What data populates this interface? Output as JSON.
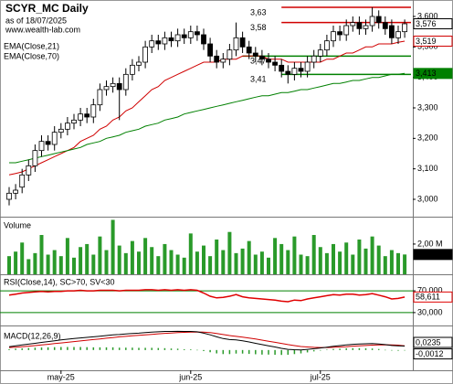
{
  "chart_data": [
    {
      "type": "candlestick",
      "title": "SCYR_MC Daily",
      "subtitle": "as of 18/07/2025",
      "source": "www.wealth-lab.com",
      "categories": [
        null,
        null,
        null,
        null,
        null,
        null,
        null,
        null,
        "may-25",
        null,
        null,
        null,
        null,
        null,
        null,
        null,
        null,
        null,
        null,
        null,
        null,
        null,
        null,
        null,
        null,
        null,
        null,
        null,
        "jun-25",
        null,
        null,
        null,
        null,
        null,
        null,
        null,
        null,
        null,
        null,
        null,
        null,
        null,
        null,
        null,
        null,
        null,
        null,
        null,
        "jul-25",
        null,
        null,
        null,
        null,
        null,
        null,
        null,
        null,
        null,
        null,
        null,
        null,
        null
      ],
      "open": [
        3.0,
        3.02,
        3.04,
        3.08,
        3.11,
        3.16,
        3.19,
        3.18,
        3.22,
        3.23,
        3.25,
        3.26,
        3.28,
        3.27,
        3.31,
        3.36,
        3.37,
        3.38,
        3.36,
        3.41,
        3.44,
        3.45,
        3.5,
        3.52,
        3.51,
        3.53,
        3.52,
        3.54,
        3.53,
        3.55,
        3.54,
        3.51,
        3.47,
        3.45,
        3.46,
        3.49,
        3.53,
        3.5,
        3.48,
        3.47,
        3.46,
        3.45,
        3.44,
        3.42,
        3.41,
        3.43,
        3.42,
        3.45,
        3.47,
        3.49,
        3.52,
        3.55,
        3.54,
        3.57,
        3.58,
        3.56,
        3.57,
        3.6,
        3.58,
        3.57,
        3.53,
        3.55
      ],
      "high": [
        3.04,
        3.05,
        3.1,
        3.13,
        3.18,
        3.21,
        3.21,
        3.24,
        3.25,
        3.27,
        3.28,
        3.3,
        3.3,
        3.33,
        3.38,
        3.39,
        3.4,
        3.4,
        3.43,
        3.46,
        3.47,
        3.52,
        3.54,
        3.54,
        3.55,
        3.55,
        3.56,
        3.56,
        3.57,
        3.57,
        3.56,
        3.53,
        3.49,
        3.48,
        3.51,
        3.58,
        3.55,
        3.52,
        3.5,
        3.49,
        3.48,
        3.47,
        3.46,
        3.44,
        3.45,
        3.45,
        3.47,
        3.49,
        3.51,
        3.54,
        3.57,
        3.57,
        3.59,
        3.6,
        3.6,
        3.59,
        3.63,
        3.62,
        3.6,
        3.59,
        3.57,
        3.59
      ],
      "low": [
        2.98,
        3.0,
        3.02,
        3.06,
        3.09,
        3.14,
        3.16,
        3.16,
        3.2,
        3.21,
        3.23,
        3.24,
        3.25,
        3.25,
        3.29,
        3.34,
        3.35,
        3.26,
        3.34,
        3.39,
        3.42,
        3.43,
        3.48,
        3.49,
        3.49,
        3.5,
        3.5,
        3.51,
        3.51,
        3.52,
        3.49,
        3.45,
        3.43,
        3.43,
        3.44,
        3.47,
        3.48,
        3.46,
        3.45,
        3.44,
        3.43,
        3.42,
        3.4,
        3.38,
        3.39,
        3.4,
        3.4,
        3.43,
        3.45,
        3.47,
        3.5,
        3.52,
        3.52,
        3.55,
        3.54,
        3.54,
        3.55,
        3.56,
        3.54,
        3.51,
        3.51,
        3.53
      ],
      "close": [
        3.02,
        3.03,
        3.08,
        3.11,
        3.16,
        3.19,
        3.18,
        3.22,
        3.23,
        3.25,
        3.26,
        3.28,
        3.27,
        3.31,
        3.36,
        3.37,
        3.38,
        3.36,
        3.41,
        3.44,
        3.45,
        3.5,
        3.52,
        3.51,
        3.53,
        3.52,
        3.54,
        3.53,
        3.55,
        3.54,
        3.51,
        3.47,
        3.45,
        3.46,
        3.49,
        3.53,
        3.5,
        3.48,
        3.47,
        3.46,
        3.45,
        3.44,
        3.42,
        3.41,
        3.43,
        3.42,
        3.45,
        3.47,
        3.49,
        3.52,
        3.55,
        3.54,
        3.57,
        3.58,
        3.56,
        3.57,
        3.6,
        3.58,
        3.56,
        3.53,
        3.55,
        3.576
      ],
      "last_label": "3,576",
      "series": [
        {
          "name": "EMA(Close,21)",
          "color": "#d00000",
          "last_label": "3,519",
          "values": [
            3.08,
            3.085,
            3.09,
            3.1,
            3.11,
            3.12,
            3.13,
            3.14,
            3.15,
            3.16,
            3.17,
            3.19,
            3.2,
            3.21,
            3.23,
            3.24,
            3.26,
            3.27,
            3.29,
            3.3,
            3.32,
            3.34,
            3.36,
            3.37,
            3.39,
            3.4,
            3.41,
            3.42,
            3.43,
            3.44,
            3.45,
            3.45,
            3.45,
            3.46,
            3.46,
            3.46,
            3.47,
            3.47,
            3.47,
            3.47,
            3.46,
            3.46,
            3.46,
            3.45,
            3.45,
            3.45,
            3.45,
            3.45,
            3.45,
            3.46,
            3.46,
            3.47,
            3.48,
            3.48,
            3.49,
            3.5,
            3.5,
            3.51,
            3.51,
            3.51,
            3.515,
            3.519
          ]
        },
        {
          "name": "EMA(Close,70)",
          "color": "#008000",
          "last_label": "3,413",
          "values": [
            3.12,
            3.12,
            3.125,
            3.13,
            3.135,
            3.14,
            3.145,
            3.15,
            3.155,
            3.16,
            3.165,
            3.17,
            3.18,
            3.185,
            3.19,
            3.2,
            3.205,
            3.21,
            3.22,
            3.225,
            3.23,
            3.24,
            3.245,
            3.25,
            3.26,
            3.265,
            3.27,
            3.28,
            3.285,
            3.29,
            3.295,
            3.3,
            3.305,
            3.31,
            3.315,
            3.32,
            3.325,
            3.33,
            3.335,
            3.34,
            3.34,
            3.345,
            3.35,
            3.35,
            3.355,
            3.36,
            3.36,
            3.365,
            3.37,
            3.375,
            3.38,
            3.38,
            3.385,
            3.39,
            3.39,
            3.395,
            3.4,
            3.4,
            3.405,
            3.41,
            3.41,
            3.413
          ]
        }
      ],
      "levels": [
        {
          "value": 3.63,
          "label": "3,63",
          "color": "#d00000"
        },
        {
          "value": 3.58,
          "label": "3,58",
          "color": "#d00000"
        },
        {
          "value": 3.47,
          "label": "3,47",
          "color": "#008000"
        },
        {
          "value": 3.41,
          "label": "3,41",
          "color": "#008000"
        }
      ],
      "ylim": [
        2.946,
        3.648
      ],
      "yticks": [
        {
          "value": 3.6,
          "label": "3,600"
        },
        {
          "value": 3.5,
          "label": "3,500"
        },
        {
          "value": 3.4,
          "label": "3,400"
        },
        {
          "value": 3.3,
          "label": "3,300"
        },
        {
          "value": 3.2,
          "label": "3,200"
        },
        {
          "value": 3.1,
          "label": "3,100"
        },
        {
          "value": 3.0,
          "label": "3,000"
        }
      ]
    },
    {
      "type": "bar",
      "title": "Volume",
      "color": "#2a9a2a",
      "last_label": "1,31M",
      "values": [
        1.2,
        1.5,
        2.1,
        1.0,
        1.4,
        2.6,
        1.3,
        1.6,
        1.2,
        2.4,
        1.1,
        1.8,
        2.0,
        1.3,
        2.5,
        1.6,
        3.6,
        1.9,
        1.4,
        2.2,
        1.5,
        2.4,
        1.8,
        1.2,
        2.0,
        1.6,
        1.3,
        1.1,
        2.7,
        1.5,
        1.9,
        1.2,
        2.3,
        1.6,
        2.8,
        1.4,
        1.7,
        2.2,
        1.3,
        1.5,
        1.1,
        2.4,
        2.0,
        1.6,
        2.5,
        1.3,
        1.2,
        2.6,
        1.8,
        1.4,
        2.0,
        1.5,
        2.1,
        1.3,
        2.3,
        1.7,
        2.5,
        1.9,
        1.2,
        1.6,
        1.4,
        1.31
      ],
      "ylim": [
        0,
        3.75
      ],
      "yticks": [
        {
          "value": 2,
          "label": "2,00 M"
        }
      ]
    },
    {
      "type": "line",
      "title": "RSI(Close,14), SC>70, SV<30",
      "color": "#e00000",
      "last_label": "58,611",
      "values": [
        62,
        64,
        66,
        67,
        68,
        69,
        68,
        69,
        69,
        70,
        70,
        71,
        70,
        70,
        71,
        71,
        71,
        70,
        71,
        71,
        71,
        72,
        72,
        71,
        72,
        71,
        72,
        71,
        72,
        71,
        66,
        60,
        57,
        58,
        60,
        63,
        59,
        57,
        56,
        55,
        54,
        53,
        51,
        50,
        53,
        52,
        55,
        57,
        59,
        61,
        63,
        62,
        64,
        64,
        62,
        63,
        65,
        62,
        59,
        55,
        56,
        58.611
      ],
      "ylim": [
        8,
        97
      ],
      "yticks": [
        {
          "value": 70,
          "label": "70,000"
        },
        {
          "value": 30,
          "label": "30,000"
        }
      ]
    },
    {
      "type": "macd",
      "title": "MACD(12,26,9)",
      "macd": {
        "color": "#000000",
        "last_label": "0,0235",
        "values": [
          0.02,
          0.025,
          0.03,
          0.035,
          0.04,
          0.045,
          0.05,
          0.055,
          0.06,
          0.064,
          0.068,
          0.072,
          0.075,
          0.078,
          0.082,
          0.086,
          0.09,
          0.092,
          0.095,
          0.098,
          0.1,
          0.103,
          0.106,
          0.108,
          0.11,
          0.11,
          0.111,
          0.11,
          0.11,
          0.108,
          0.1,
          0.09,
          0.078,
          0.068,
          0.062,
          0.06,
          0.055,
          0.048,
          0.04,
          0.032,
          0.025,
          0.018,
          0.01,
          0.004,
          0.002,
          0.001,
          0.004,
          0.008,
          0.012,
          0.017,
          0.022,
          0.026,
          0.03,
          0.034,
          0.036,
          0.037,
          0.038,
          0.036,
          0.032,
          0.027,
          0.025,
          0.0235
        ]
      },
      "signal": {
        "color": "#d00000",
        "values": [
          0.015,
          0.017,
          0.02,
          0.023,
          0.026,
          0.03,
          0.034,
          0.038,
          0.042,
          0.046,
          0.05,
          0.054,
          0.058,
          0.062,
          0.066,
          0.07,
          0.074,
          0.078,
          0.081,
          0.084,
          0.087,
          0.09,
          0.093,
          0.096,
          0.099,
          0.101,
          0.103,
          0.105,
          0.106,
          0.107,
          0.106,
          0.103,
          0.098,
          0.092,
          0.086,
          0.081,
          0.076,
          0.071,
          0.065,
          0.059,
          0.052,
          0.046,
          0.039,
          0.032,
          0.026,
          0.021,
          0.018,
          0.016,
          0.015,
          0.015,
          0.016,
          0.018,
          0.02,
          0.023,
          0.025,
          0.027,
          0.029,
          0.03,
          0.031,
          0.03,
          0.029,
          0.0247
        ]
      },
      "histogram": {
        "color": "#2a9a2a",
        "last_label": "-0,0012",
        "values": [
          0.005,
          0.008,
          0.01,
          0.012,
          0.014,
          0.015,
          0.016,
          0.017,
          0.018,
          0.018,
          0.018,
          0.018,
          0.017,
          0.016,
          0.016,
          0.016,
          0.016,
          0.014,
          0.014,
          0.014,
          0.013,
          0.013,
          0.013,
          0.012,
          0.011,
          0.009,
          0.008,
          0.005,
          0.004,
          0.001,
          -0.006,
          -0.013,
          -0.02,
          -0.024,
          -0.024,
          -0.021,
          -0.021,
          -0.023,
          -0.025,
          -0.027,
          -0.027,
          -0.028,
          -0.029,
          -0.028,
          -0.024,
          -0.02,
          -0.014,
          -0.008,
          -0.003,
          0.002,
          0.006,
          0.008,
          0.01,
          0.011,
          0.011,
          0.01,
          0.009,
          0.006,
          0.001,
          -0.003,
          -0.004,
          -0.0012
        ]
      },
      "ylim": [
        -0.12,
        0.14
      ]
    }
  ]
}
